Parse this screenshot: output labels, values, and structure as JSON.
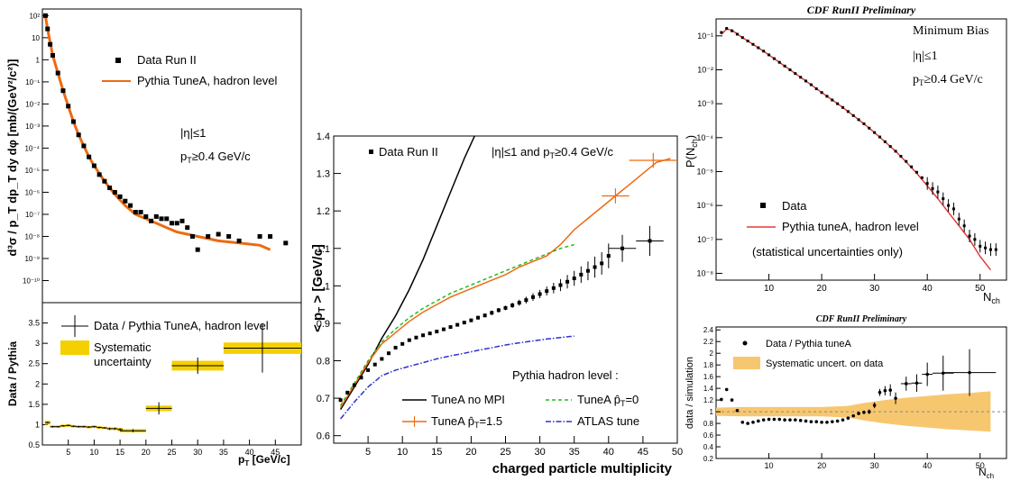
{
  "colors": {
    "data": "#000000",
    "pythia_orange": "#ee6a10",
    "sys_band": "#f5d000",
    "cdf_red": "#e03c3c",
    "sys_band_cdf": "#f7c770",
    "tune_green": "#22bb22",
    "atlas_blue": "#3030d0"
  },
  "chart_data": [
    {
      "id": "pt_spectrum",
      "type": "scatter",
      "log_y": true,
      "ylabel": "d³σ / p_T dp_T dy dφ [mb/(GeV²/c²)]",
      "xlim": [
        0,
        50
      ],
      "ylim_exp": [
        -11,
        2.3
      ],
      "y_ticks": [
        "10²",
        "10",
        "1",
        "10⁻¹",
        "10⁻²",
        "10⁻³",
        "10⁻⁴",
        "10⁻⁵",
        "10⁻⁶",
        "10⁻⁷",
        "10⁻⁸",
        "10⁻⁹",
        "10⁻¹⁰"
      ],
      "legend": [
        "Data Run II",
        "Pythia TuneA, hadron level"
      ],
      "annotations": [
        "|η|≤1",
        "p_T≥0.4 GeV/c"
      ],
      "data_series": {
        "name": "Data Run II",
        "x": [
          0.6,
          1,
          1.5,
          2,
          3,
          4,
          5,
          6,
          7,
          8,
          9,
          10,
          11,
          12,
          13,
          14,
          15,
          16,
          17,
          18,
          19,
          20,
          21,
          22,
          23,
          24,
          25,
          26,
          27,
          28,
          29,
          30,
          32,
          34,
          36,
          38,
          42,
          44,
          47
        ],
        "log_y": [
          2.0,
          1.4,
          0.7,
          0.2,
          -0.6,
          -1.4,
          -2.1,
          -2.8,
          -3.4,
          -3.9,
          -4.4,
          -4.8,
          -5.2,
          -5.5,
          -5.8,
          -6.0,
          -6.2,
          -6.4,
          -6.6,
          -6.9,
          -6.9,
          -7.1,
          -7.3,
          -7.1,
          -7.2,
          -7.2,
          -7.4,
          -7.4,
          -7.3,
          -7.6,
          -8.0,
          -8.6,
          -8.0,
          -7.9,
          -8.0,
          -8.2,
          -8.0,
          -8.0,
          -8.3
        ]
      },
      "mc_series": {
        "name": "Pythia TuneA, hadron level",
        "x": [
          0.5,
          1,
          2,
          3,
          4,
          5,
          6,
          7,
          8,
          9,
          10,
          12,
          14,
          16,
          18,
          20,
          22,
          24,
          26,
          28,
          30,
          34,
          38,
          42,
          44
        ],
        "log_y": [
          2.1,
          1.4,
          0.2,
          -0.6,
          -1.4,
          -2.1,
          -2.8,
          -3.4,
          -3.9,
          -4.4,
          -4.8,
          -5.5,
          -6.1,
          -6.6,
          -7.0,
          -7.2,
          -7.4,
          -7.6,
          -7.8,
          -7.9,
          -8.0,
          -8.2,
          -8.3,
          -8.4,
          -8.6
        ]
      }
    },
    {
      "id": "pt_ratio",
      "type": "scatter",
      "xlabel": "p_T  [GeV/c]",
      "ylabel": "Data / Pythia",
      "xlim": [
        0,
        50
      ],
      "ylim": [
        0.5,
        4.0
      ],
      "x_ticks": [
        5,
        10,
        15,
        20,
        25,
        30,
        35,
        40,
        45
      ],
      "y_ticks": [
        0.5,
        1,
        1.5,
        2,
        2.5,
        3,
        3.5
      ],
      "legend": [
        "Data / Pythia TuneA, hadron level",
        "Systematic",
        "uncertainty"
      ],
      "points": {
        "x": [
          1,
          2,
          3,
          4,
          5,
          6,
          7,
          8,
          9,
          10,
          11,
          12,
          13,
          14,
          15,
          17.5,
          22.5,
          30,
          42.5
        ],
        "y": [
          1.05,
          0.95,
          0.95,
          0.97,
          0.98,
          0.96,
          0.95,
          0.95,
          0.94,
          0.95,
          0.93,
          0.92,
          0.9,
          0.9,
          0.88,
          0.85,
          1.4,
          2.45,
          2.88
        ],
        "xerr": [
          0.5,
          0.5,
          0.5,
          0.5,
          0.5,
          0.5,
          0.5,
          0.5,
          0.5,
          0.5,
          0.5,
          0.5,
          0.5,
          0.5,
          0.5,
          2.5,
          2.5,
          5,
          7.5
        ],
        "yerr": [
          0.02,
          0.02,
          0.02,
          0.02,
          0.02,
          0.02,
          0.02,
          0.02,
          0.02,
          0.02,
          0.02,
          0.02,
          0.03,
          0.03,
          0.03,
          0.04,
          0.15,
          0.2,
          0.6
        ],
        "syshalf": [
          0.05,
          0.03,
          0.03,
          0.03,
          0.03,
          0.03,
          0.03,
          0.03,
          0.03,
          0.03,
          0.03,
          0.03,
          0.03,
          0.03,
          0.04,
          0.04,
          0.07,
          0.12,
          0.14
        ]
      }
    },
    {
      "id": "mean_pt",
      "type": "line",
      "xlabel": "charged particle multiplicity",
      "ylabel": "< p_T >  [GeV/c]",
      "xlim": [
        0,
        50
      ],
      "ylim": [
        0.58,
        1.4
      ],
      "x_ticks": [
        5,
        10,
        15,
        20,
        25,
        30,
        35,
        40,
        45,
        50
      ],
      "y_ticks": [
        0.6,
        0.7,
        0.8,
        0.9,
        1,
        1.1,
        1.2,
        1.3,
        1.4
      ],
      "annotations": [
        "|η|≤1 and p_T≥0.4 GeV/c",
        "Pythia hadron level :"
      ],
      "legend": [
        "Data Run II",
        "TuneA no MPI",
        "TuneA p̂_T=0",
        "TuneA p̂_T=1.5",
        "ATLAS tune"
      ],
      "data_series": {
        "name": "Data Run II",
        "x": [
          1,
          2,
          3,
          4,
          5,
          6,
          7,
          8,
          9,
          10,
          11,
          12,
          13,
          14,
          15,
          16,
          17,
          18,
          19,
          20,
          21,
          22,
          23,
          24,
          25,
          26,
          27,
          28,
          29,
          30,
          31,
          32,
          33,
          34,
          35,
          36,
          37,
          38,
          39,
          40,
          42,
          46
        ],
        "y": [
          0.695,
          0.715,
          0.735,
          0.755,
          0.775,
          0.79,
          0.805,
          0.82,
          0.835,
          0.845,
          0.855,
          0.862,
          0.868,
          0.873,
          0.878,
          0.884,
          0.89,
          0.896,
          0.902,
          0.908,
          0.915,
          0.921,
          0.928,
          0.935,
          0.941,
          0.948,
          0.955,
          0.962,
          0.97,
          0.978,
          0.986,
          0.994,
          1.002,
          1.011,
          1.02,
          1.03,
          1.04,
          1.05,
          1.06,
          1.08,
          1.1,
          1.12
        ],
        "yerr": [
          0.003,
          0.003,
          0.003,
          0.003,
          0.003,
          0.003,
          0.003,
          0.003,
          0.003,
          0.003,
          0.003,
          0.003,
          0.003,
          0.003,
          0.004,
          0.004,
          0.004,
          0.004,
          0.004,
          0.005,
          0.005,
          0.005,
          0.006,
          0.006,
          0.006,
          0.007,
          0.008,
          0.009,
          0.01,
          0.011,
          0.012,
          0.014,
          0.016,
          0.018,
          0.02,
          0.022,
          0.025,
          0.028,
          0.03,
          0.033,
          0.036,
          0.04
        ]
      },
      "mc_series": [
        {
          "name": "TuneA no MPI",
          "x": [
            1,
            3,
            5,
            7,
            9,
            11,
            13,
            15,
            17,
            19,
            21
          ],
          "y": [
            0.67,
            0.73,
            0.79,
            0.86,
            0.92,
            0.99,
            1.07,
            1.16,
            1.25,
            1.34,
            1.42
          ]
        },
        {
          "name": "TuneA p̂_T=0",
          "x": [
            1,
            3,
            5,
            7,
            9,
            11,
            13,
            15,
            17,
            19,
            21,
            23,
            25,
            27,
            29,
            31,
            33,
            35
          ],
          "y": [
            0.68,
            0.74,
            0.8,
            0.85,
            0.885,
            0.915,
            0.94,
            0.96,
            0.98,
            0.995,
            1.01,
            1.025,
            1.04,
            1.055,
            1.07,
            1.085,
            1.1,
            1.11
          ]
        },
        {
          "name": "TuneA p̂_T=1.5",
          "x": [
            1,
            3,
            5,
            7,
            9,
            11,
            13,
            15,
            17,
            19,
            21,
            23,
            25,
            27,
            29,
            31,
            33,
            35,
            37,
            39,
            41,
            43,
            45,
            47,
            49
          ],
          "y": [
            0.675,
            0.735,
            0.795,
            0.845,
            0.875,
            0.905,
            0.93,
            0.95,
            0.97,
            0.985,
            1.0,
            1.015,
            1.03,
            1.05,
            1.065,
            1.08,
            1.11,
            1.15,
            1.18,
            1.21,
            1.24,
            1.27,
            1.3,
            1.33,
            1.34
          ]
        },
        {
          "name": "ATLAS tune",
          "x": [
            1,
            3,
            5,
            7,
            9,
            11,
            13,
            15,
            17,
            19,
            21,
            23,
            25,
            27,
            29,
            31,
            33,
            35
          ],
          "y": [
            0.645,
            0.69,
            0.73,
            0.76,
            0.775,
            0.785,
            0.795,
            0.805,
            0.813,
            0.82,
            0.828,
            0.835,
            0.842,
            0.848,
            0.853,
            0.858,
            0.862,
            0.866
          ]
        }
      ]
    },
    {
      "id": "nch_dist",
      "type": "scatter",
      "log_y": true,
      "title": "CDF RunII Preliminary",
      "xlabel": "N_ch",
      "ylabel": "P(N_ch)",
      "xlim": [
        0,
        55
      ],
      "ylim_exp": [
        -8.2,
        -0.5
      ],
      "x_ticks": [
        10,
        20,
        30,
        40,
        50
      ],
      "y_ticks": [
        "10⁻¹",
        "10⁻²",
        "10⁻³",
        "10⁻⁴",
        "10⁻⁵",
        "10⁻⁶",
        "10⁻⁷",
        "10⁻⁸"
      ],
      "annotations": [
        "Minimum Bias",
        "|η|≤1",
        "p_T≥0.4 GeV/c",
        "(statistical uncertainties only)"
      ],
      "legend": [
        "Data",
        "Pythia tuneA, hadron level"
      ],
      "data_series": {
        "name": "Data",
        "x": [
          1,
          2,
          3,
          4,
          5,
          6,
          7,
          8,
          9,
          10,
          11,
          12,
          13,
          14,
          15,
          16,
          17,
          18,
          19,
          20,
          21,
          22,
          23,
          24,
          25,
          26,
          27,
          28,
          29,
          30,
          31,
          32,
          33,
          34,
          35,
          36,
          37,
          38,
          39,
          40,
          41,
          42,
          43,
          44,
          45,
          46,
          47,
          48,
          49,
          50,
          51,
          52,
          53
        ],
        "log_y": [
          -0.9,
          -0.78,
          -0.85,
          -0.95,
          -1.05,
          -1.15,
          -1.25,
          -1.35,
          -1.45,
          -1.56,
          -1.67,
          -1.78,
          -1.89,
          -2.0,
          -2.11,
          -2.22,
          -2.33,
          -2.44,
          -2.56,
          -2.67,
          -2.78,
          -2.89,
          -3.0,
          -3.11,
          -3.23,
          -3.35,
          -3.47,
          -3.59,
          -3.72,
          -3.85,
          -3.98,
          -4.12,
          -4.26,
          -4.4,
          -4.55,
          -4.7,
          -4.86,
          -5.02,
          -5.18,
          -5.35,
          -5.5,
          -5.6,
          -5.8,
          -6.0,
          -6.1,
          -6.4,
          -6.6,
          -6.9,
          -7.0,
          -7.2,
          -7.25,
          -7.3,
          -7.3
        ]
      },
      "mc_series": {
        "name": "Pythia tuneA, hadron level",
        "x": [
          1,
          2,
          3,
          4,
          6,
          8,
          10,
          12,
          14,
          16,
          18,
          20,
          22,
          24,
          26,
          28,
          30,
          32,
          34,
          36,
          38,
          40,
          42,
          44,
          46,
          48,
          50,
          52
        ],
        "log_y": [
          -0.95,
          -0.8,
          -0.83,
          -0.95,
          -1.15,
          -1.35,
          -1.56,
          -1.78,
          -2.0,
          -2.22,
          -2.44,
          -2.67,
          -2.89,
          -3.11,
          -3.35,
          -3.59,
          -3.85,
          -4.12,
          -4.4,
          -4.72,
          -5.05,
          -5.42,
          -5.8,
          -6.2,
          -6.6,
          -7.0,
          -7.5,
          -7.9
        ]
      }
    },
    {
      "id": "nch_ratio",
      "type": "scatter",
      "title": "CDF RunII Preliminary",
      "xlabel": "N_ch",
      "ylabel": "data / simulation",
      "xlim": [
        0,
        55
      ],
      "ylim": [
        0.2,
        2.45
      ],
      "x_ticks": [
        10,
        20,
        30,
        40,
        50
      ],
      "y_ticks": [
        0.2,
        0.4,
        0.6,
        0.8,
        1,
        1.2,
        1.4,
        1.6,
        1.8,
        2,
        2.2,
        2.4
      ],
      "legend": [
        "Data / Pythia tuneA",
        "Systematic uncert. on data"
      ],
      "points": {
        "x": [
          1,
          2,
          3,
          4,
          5,
          6,
          7,
          8,
          9,
          10,
          11,
          12,
          13,
          14,
          15,
          16,
          17,
          18,
          19,
          20,
          21,
          22,
          23,
          24,
          25,
          26,
          27,
          28,
          29,
          30,
          31,
          32,
          33,
          34,
          36,
          38,
          40,
          43,
          48
        ],
        "y": [
          1.21,
          1.38,
          1.2,
          1.02,
          0.82,
          0.8,
          0.82,
          0.84,
          0.86,
          0.87,
          0.87,
          0.87,
          0.86,
          0.86,
          0.86,
          0.85,
          0.84,
          0.83,
          0.83,
          0.82,
          0.82,
          0.83,
          0.84,
          0.86,
          0.89,
          0.93,
          0.97,
          0.99,
          1.0,
          1.11,
          1.33,
          1.36,
          1.37,
          1.23,
          1.48,
          1.49,
          1.64,
          1.66,
          1.67
        ],
        "yerr": [
          0.02,
          0.02,
          0.02,
          0.02,
          0.01,
          0.01,
          0.01,
          0.01,
          0.01,
          0.01,
          0.01,
          0.01,
          0.01,
          0.01,
          0.01,
          0.01,
          0.01,
          0.01,
          0.01,
          0.01,
          0.01,
          0.01,
          0.01,
          0.02,
          0.02,
          0.02,
          0.03,
          0.03,
          0.04,
          0.05,
          0.06,
          0.08,
          0.1,
          0.1,
          0.12,
          0.15,
          0.2,
          0.3,
          0.4
        ],
        "xerr": [
          0.5,
          0.5,
          0.5,
          0.5,
          0.5,
          0.5,
          0.5,
          0.5,
          0.5,
          0.5,
          0.5,
          0.5,
          0.5,
          0.5,
          0.5,
          0.5,
          0.5,
          0.5,
          0.5,
          0.5,
          0.5,
          0.5,
          0.5,
          0.5,
          0.5,
          0.5,
          0.5,
          0.5,
          0.5,
          0.5,
          0.5,
          0.5,
          0.5,
          0.5,
          1,
          1,
          1,
          2,
          5
        ]
      },
      "band": {
        "x": [
          0,
          5,
          10,
          15,
          20,
          25,
          28,
          32,
          36,
          40,
          44,
          48,
          52
        ],
        "lo": [
          0.93,
          0.92,
          0.92,
          0.92,
          0.92,
          0.9,
          0.85,
          0.8,
          0.76,
          0.73,
          0.7,
          0.68,
          0.66
        ],
        "hi": [
          1.07,
          1.08,
          1.08,
          1.08,
          1.08,
          1.1,
          1.15,
          1.2,
          1.24,
          1.27,
          1.3,
          1.32,
          1.35
        ]
      }
    }
  ],
  "text": {
    "p1_leg_data": "Data Run II",
    "p1_leg_mc": "Pythia TuneA, hadron level",
    "p1_eta": "|η|≤1",
    "p1_pt_a": "p",
    "p1_pt_sub": "T",
    "p1_pt_b": "≥0.4 GeV/c",
    "p2_ylabel": "Data / Pythia",
    "p2_xlabel_a": "p",
    "p2_xlabel_sub": "T",
    "p2_xlabel_b": "  [GeV/c]",
    "p2_leg_ratio": "Data / Pythia TuneA, hadron level",
    "p2_leg_sys1": "Systematic",
    "p2_leg_sys2": "uncertainty",
    "p3_leg_data": "Data Run II",
    "p3_ann_a": "|η|≤1 and p",
    "p3_ann_sub": "T",
    "p3_ann_b": "≥0.4 GeV/c",
    "p3_pythia": "Pythia hadron level :",
    "p3_leg_nompi": "TuneA no MPI",
    "p3_leg_pt0": "TuneA p̂",
    "p3_leg_pt0_b": "=0",
    "p3_leg_pt15": "TuneA p̂",
    "p3_leg_pt15_b": "=1.5",
    "p3_leg_atlas": "ATLAS tune",
    "p3_xlabel": "charged particle multiplicity",
    "p3_ylabel_a": "< p",
    "p3_ylabel_sub": "T",
    "p3_ylabel_b": " >  [GeV/c]",
    "p4_title": "CDF RunII Preliminary",
    "p4_minbias": "Minimum Bias",
    "p4_eta": "|η|≤1",
    "p4_pt_a": "p",
    "p4_pt_sub": "T",
    "p4_pt_b": "≥0.4 GeV/c",
    "p4_leg_data": "Data",
    "p4_leg_mc": "Pythia tuneA, hadron level",
    "p4_stat": "(statistical uncertainties only)",
    "p4_xlabel_a": "N",
    "p4_xlabel_sub": "ch",
    "p4_ylabel_a": "P(N",
    "p4_ylabel_sub": "ch",
    "p4_ylabel_b": ")",
    "p5_title": "CDF RunII Preliminary",
    "p5_ylabel": "data / simulation",
    "p5_leg_data": "Data / Pythia tuneA",
    "p5_leg_sys": "Systematic uncert. on data",
    "p5_xlabel_a": "N",
    "p5_xlabel_sub": "ch",
    "p1_ylabel": "d³σ / p_T dp_T dy dφ [mb/(GeV²/c²)]"
  }
}
